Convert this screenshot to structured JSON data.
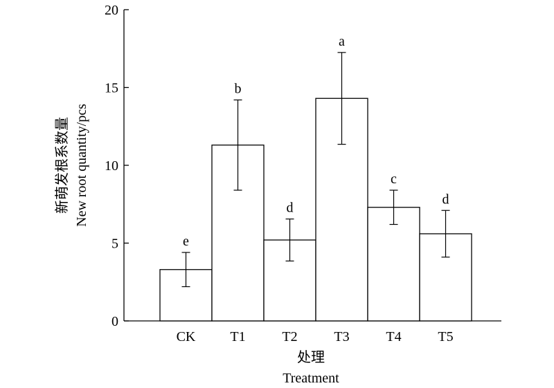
{
  "chart_data": {
    "type": "bar",
    "categories": [
      "CK",
      "T1",
      "T2",
      "T3",
      "T4",
      "T5"
    ],
    "values": [
      3.3,
      11.3,
      5.2,
      14.3,
      7.3,
      5.6
    ],
    "error": [
      1.1,
      2.9,
      1.35,
      2.95,
      1.1,
      1.5
    ],
    "significance": [
      "e",
      "b",
      "d",
      "a",
      "c",
      "d"
    ],
    "ylim": [
      0,
      20
    ],
    "yticks": [
      0,
      5,
      10,
      15,
      20
    ],
    "ylabel_cn": "新萌发根系数量",
    "ylabel_en": "New root quantity/pcs",
    "xlabel_cn": "处理",
    "xlabel_en": "Treatment",
    "bar_fill": "#ffffff",
    "bar_stroke": "#000000",
    "grid": false
  }
}
